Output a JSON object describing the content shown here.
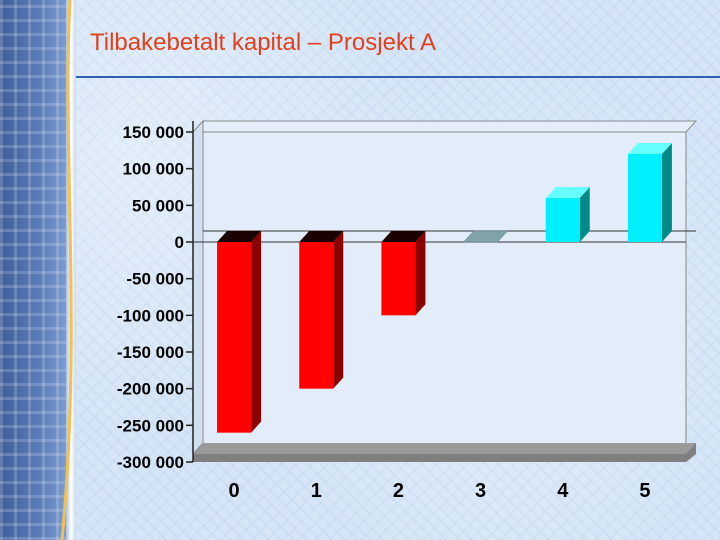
{
  "slide": {
    "title": "Tilbakebetalt kapital – Prosjekt A"
  },
  "chart_data": {
    "type": "bar",
    "categories": [
      "0",
      "1",
      "2",
      "3",
      "4",
      "5"
    ],
    "values": [
      -260000,
      -200000,
      -100000,
      0,
      60000,
      120000
    ],
    "ylim": [
      -300000,
      150000
    ],
    "yticks": [
      150000,
      100000,
      50000,
      0,
      -50000,
      -100000,
      -150000,
      -200000,
      -250000,
      -300000
    ],
    "ytick_labels": [
      "150 000",
      "100 000",
      "50 000",
      "0",
      "-50 000",
      "-100 000",
      "-150 000",
      "-200 000",
      "-250 000",
      "-300 000"
    ],
    "xtick_labels": [
      "0",
      "1",
      "2",
      "3",
      "4",
      "5"
    ],
    "colors": {
      "negative_front": "#ff0000",
      "negative_side": "#8a0000",
      "negative_top": "#1a0000",
      "positive_front": "#00f0ff",
      "positive_side": "#008a8a",
      "positive_top": "#66ffff",
      "zero_top": "#7fa3a8"
    },
    "grid": false,
    "three_d": true
  }
}
